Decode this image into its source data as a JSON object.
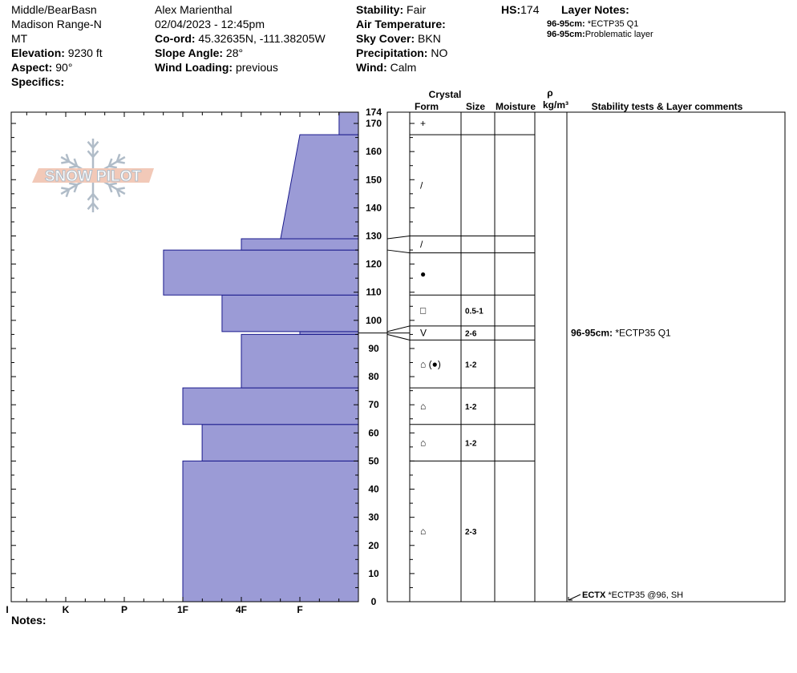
{
  "header": {
    "location_line1": "Middle/BearBasn",
    "location_line2": "Madison Range-N",
    "location_line3": "MT",
    "elevation_label": "Elevation:",
    "elevation_value": " 9230 ft",
    "aspect_label": "Aspect:",
    "aspect_value": " 90°",
    "specifics_label": "Specifics:",
    "observer": "Alex Marienthal",
    "datetime": "02/04/2023 - 12:45pm",
    "coord_label": "Co-ord:",
    "coord_value": " 45.32635N, -111.38205W",
    "slope_label": "Slope Angle:",
    "slope_value": " 28°",
    "wind_loading_label": "Wind Loading:",
    "wind_loading_value": " previous",
    "stability_label": "Stability:",
    "stability_value": " Fair",
    "air_temp_label": "Air Temperature:",
    "sky_cover_label": "Sky Cover:",
    "sky_cover_value": " BKN",
    "precip_label": "Precipitation:",
    "precip_value": " NO",
    "wind_label": "Wind:",
    "wind_value": "  Calm",
    "hs_label": "HS:",
    "hs_value": "174",
    "layer_notes_label": "Layer Notes:",
    "layer_notes": [
      {
        "depth": "96-95cm:",
        "text": " *ECTP35 Q1"
      },
      {
        "depth": "96-95cm:",
        "text": "Problematic layer"
      }
    ],
    "notes_label": "Notes:"
  },
  "logo_text": "SNOW PILOT",
  "columns": {
    "crystal": "Crystal",
    "form": "Form",
    "size": "Size",
    "moisture": "Moisture",
    "rho": "ρ",
    "density_unit": "kg/m³",
    "stability": "Stability tests & Layer comments"
  },
  "colors": {
    "hardness_fill": "#9b9bd6",
    "hardness_stroke": "#1a1a8c",
    "logo_fill": "#f2c9b8",
    "logo_stroke": "#b0bcc8"
  },
  "chart_data": {
    "type": "snow_profile",
    "hardness_axis": {
      "tick_labels": [
        "I",
        "K",
        "P",
        "1F",
        "4F",
        "F"
      ],
      "scale_order_left_to_right": [
        "I",
        "K",
        "P",
        "1F",
        "4F",
        "F",
        "surface"
      ]
    },
    "depth_axis": {
      "unit": "cm",
      "range": [
        0,
        174
      ],
      "tick_labels": [
        0,
        10,
        20,
        30,
        40,
        50,
        60,
        70,
        80,
        90,
        100,
        110,
        120,
        130,
        140,
        150,
        160,
        170,
        174
      ]
    },
    "hardness_profile": [
      {
        "bottom": 0,
        "top": 50,
        "hardness_bottom": 3.0,
        "hardness_top": 3.0
      },
      {
        "bottom": 50,
        "top": 63,
        "hardness_bottom": 3.33,
        "hardness_top": 3.33
      },
      {
        "bottom": 63,
        "top": 76,
        "hardness_bottom": 3.0,
        "hardness_top": 3.0
      },
      {
        "bottom": 76,
        "top": 95,
        "hardness_bottom": 4.0,
        "hardness_top": 4.0
      },
      {
        "bottom": 95,
        "top": 96,
        "hardness_bottom": 5.0,
        "hardness_top": 5.0
      },
      {
        "bottom": 96,
        "top": 109,
        "hardness_bottom": 3.67,
        "hardness_top": 3.67
      },
      {
        "bottom": 109,
        "top": 125,
        "hardness_bottom": 2.67,
        "hardness_top": 2.67
      },
      {
        "bottom": 125,
        "top": 129,
        "hardness_bottom": 4.0,
        "hardness_top": 4.0
      },
      {
        "bottom": 129,
        "top": 166,
        "hardness_bottom": 4.67,
        "hardness_top": 5.0
      },
      {
        "bottom": 166,
        "top": 174,
        "hardness_bottom": 5.67,
        "hardness_top": 5.67
      }
    ],
    "layers": [
      {
        "top": 174,
        "bottom": 166,
        "form": "+",
        "size": ""
      },
      {
        "top": 166,
        "bottom": 130,
        "form": "/",
        "size": ""
      },
      {
        "top": 130,
        "bottom": 124,
        "form": "/",
        "size": ""
      },
      {
        "top": 124,
        "bottom": 109,
        "form": "●",
        "size": ""
      },
      {
        "top": 109,
        "bottom": 98,
        "form": "□",
        "size": "0.5-1"
      },
      {
        "top": 98,
        "bottom": 93,
        "form": "V",
        "size": "2-6"
      },
      {
        "top": 93,
        "bottom": 76,
        "form": "⌂ (●)",
        "size": "1-2"
      },
      {
        "top": 76,
        "bottom": 63,
        "form": "⌂",
        "size": "1-2"
      },
      {
        "top": 63,
        "bottom": 50,
        "form": "⌂",
        "size": "1-2"
      },
      {
        "top": 50,
        "bottom": 0,
        "form": "⌂",
        "size": "2-3"
      }
    ],
    "layer_comments": [
      {
        "depth": 95.5,
        "label": "96-95cm:",
        "text": " *ECTP35 Q1"
      }
    ],
    "stability_tests": [
      {
        "depth": 0,
        "code": "ECTX",
        "text": " *ECTP35 @96, SH"
      }
    ]
  }
}
